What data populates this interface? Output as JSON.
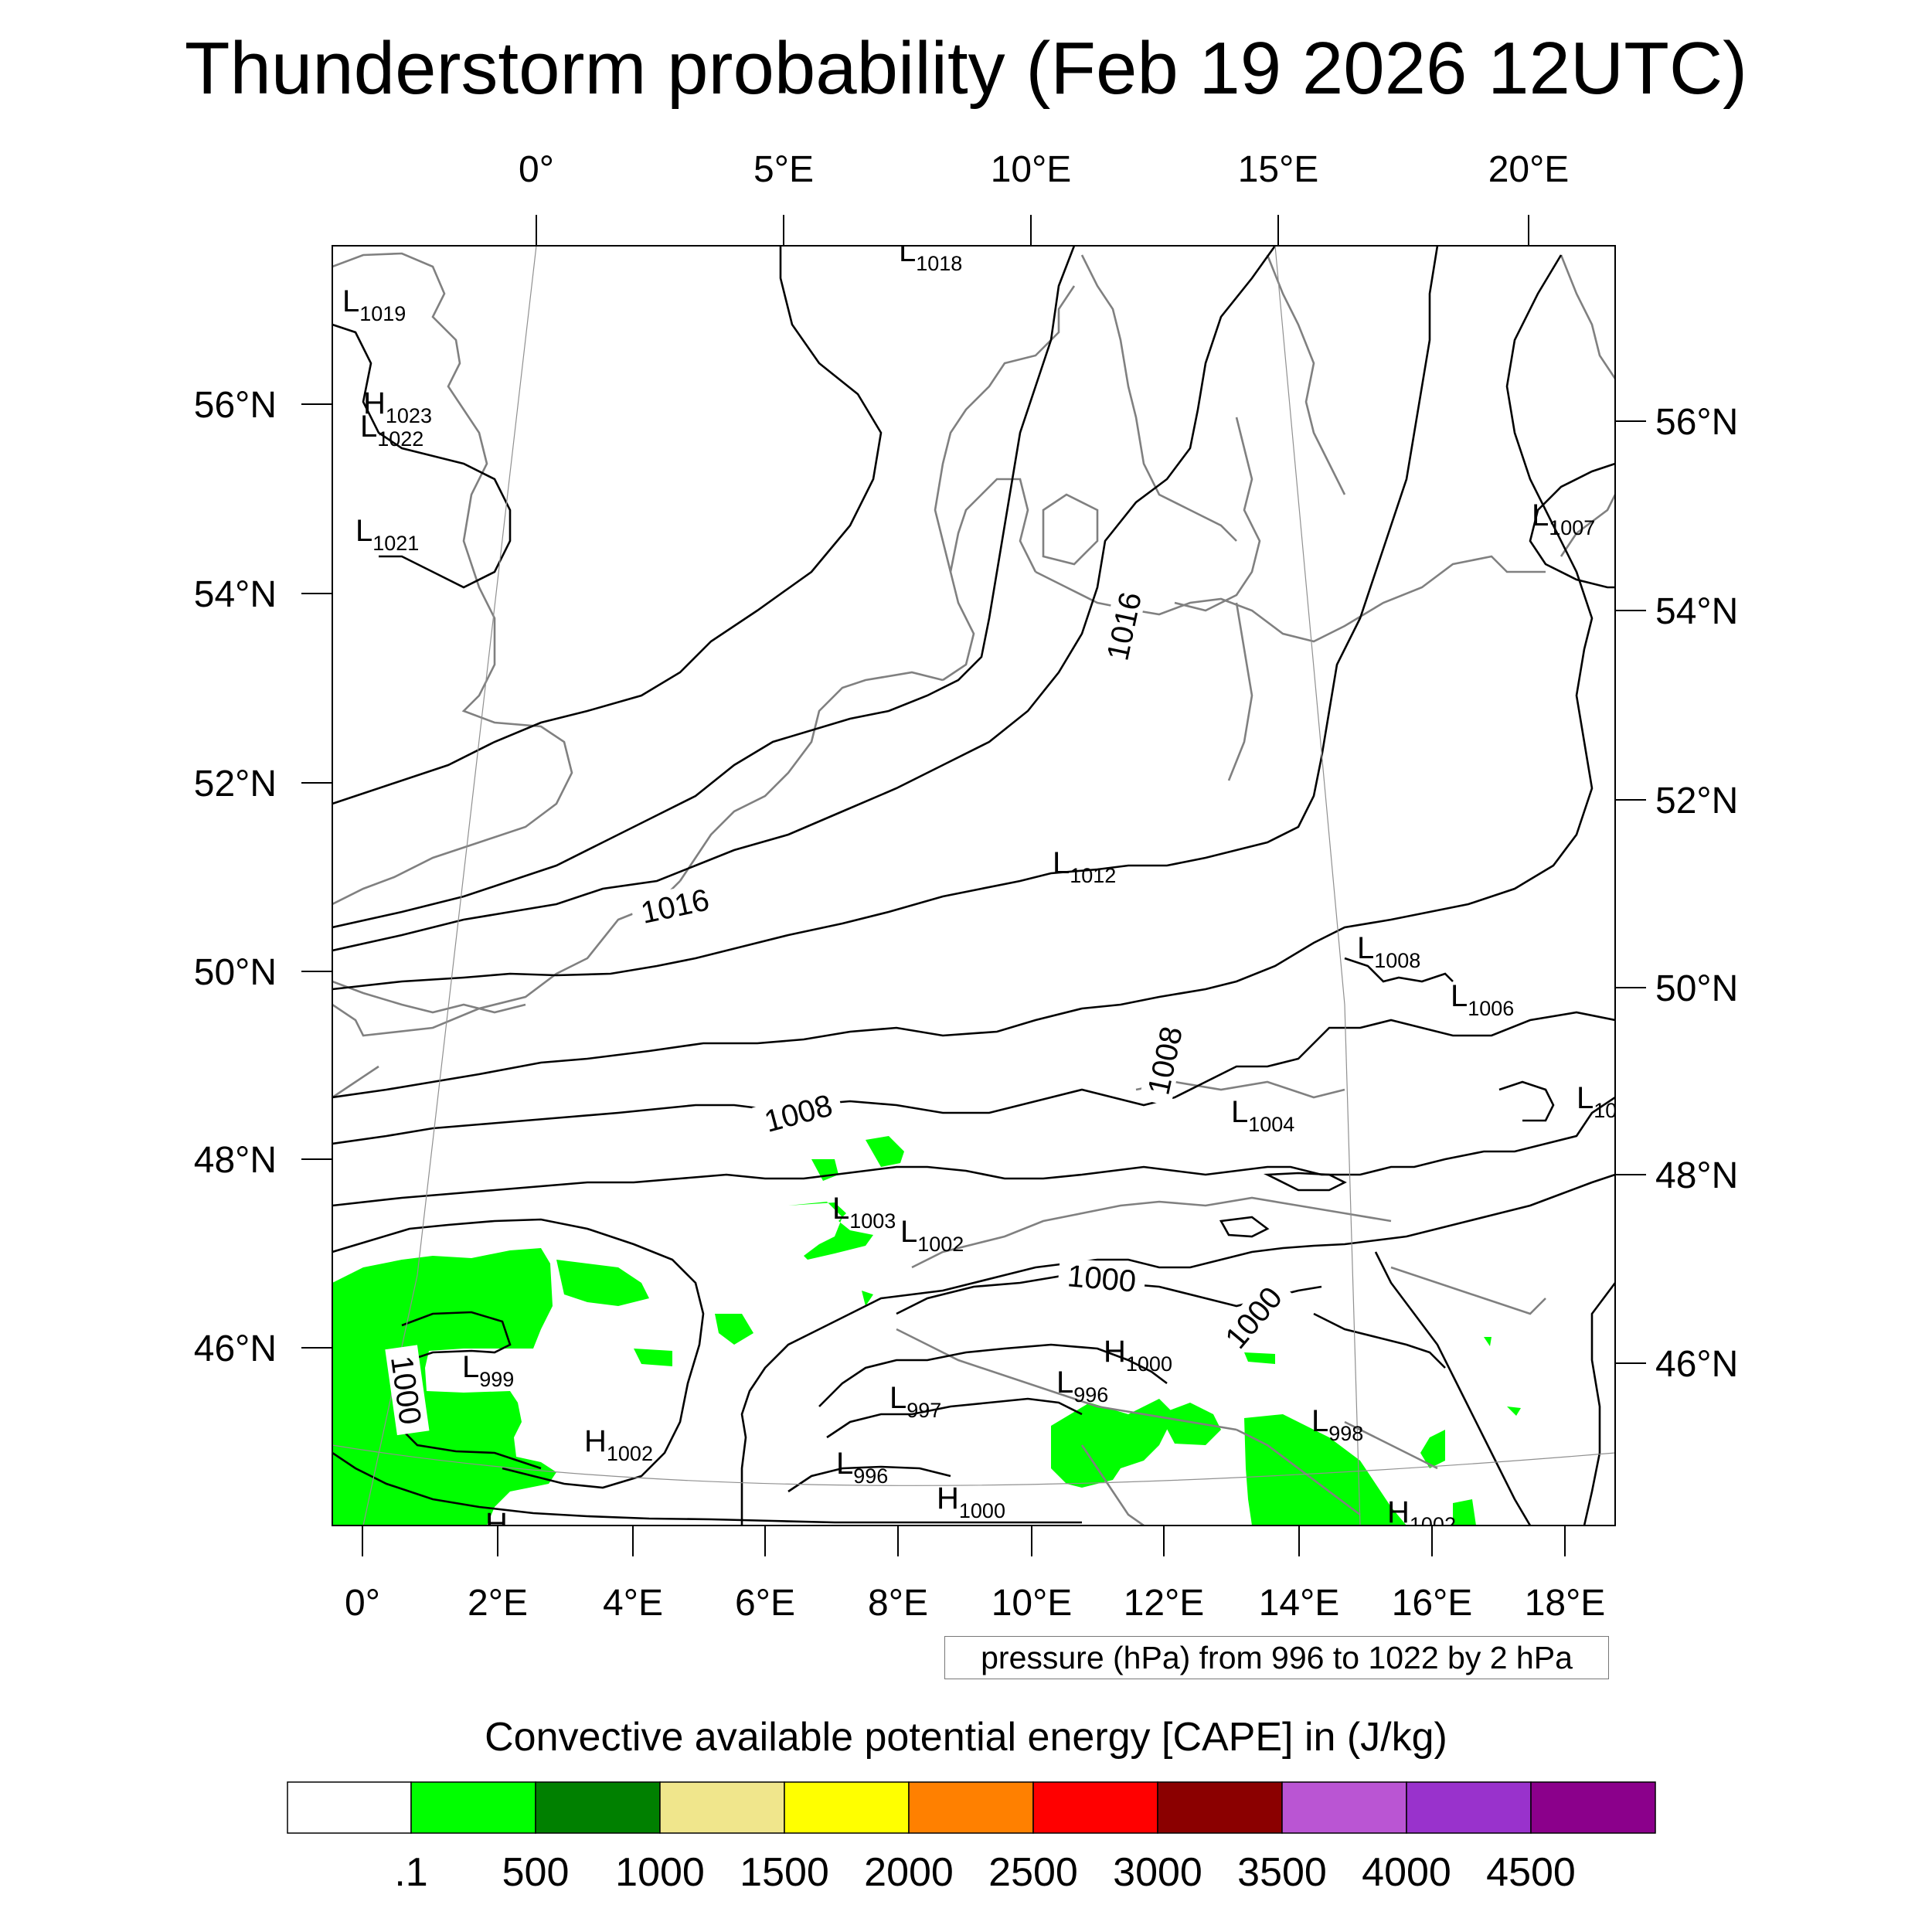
{
  "title": "Thunderstorm probability (Feb 19 2026 12UTC)",
  "top_lon_labels": [
    "0°",
    "5°E",
    "10°E",
    "15°E",
    "20°E"
  ],
  "bottom_lon_labels": [
    "0°",
    "2°E",
    "4°E",
    "6°E",
    "8°E",
    "10°E",
    "12°E",
    "14°E",
    "16°E",
    "18°E"
  ],
  "left_lat_labels": [
    "56°N",
    "54°N",
    "52°N",
    "50°N",
    "48°N",
    "46°N"
  ],
  "right_lat_labels": [
    "56°N",
    "54°N",
    "52°N",
    "50°N",
    "48°N",
    "46°N"
  ],
  "contour_labels": [
    "1016",
    "1016",
    "1008",
    "1008",
    "1000",
    "1000",
    "1000"
  ],
  "pressure_centers": [
    {
      "kind": "L",
      "value": "1018"
    },
    {
      "kind": "L",
      "value": "1019"
    },
    {
      "kind": "H",
      "value": "1023"
    },
    {
      "kind": "L",
      "value": "1022"
    },
    {
      "kind": "L",
      "value": "1021"
    },
    {
      "kind": "L",
      "value": "1007"
    },
    {
      "kind": "L",
      "value": "1012"
    },
    {
      "kind": "L",
      "value": "1008"
    },
    {
      "kind": "L",
      "value": "1006"
    },
    {
      "kind": "L",
      "value": "1004"
    },
    {
      "kind": "L",
      "value": "10"
    },
    {
      "kind": "L",
      "value": "1003"
    },
    {
      "kind": "L",
      "value": "1002"
    },
    {
      "kind": "H",
      "value": "1000"
    },
    {
      "kind": "L",
      "value": "999"
    },
    {
      "kind": "H",
      "value": "1002"
    },
    {
      "kind": "L",
      "value": "997"
    },
    {
      "kind": "L",
      "value": "996"
    },
    {
      "kind": "L",
      "value": "996"
    },
    {
      "kind": "H",
      "value": "1000"
    },
    {
      "kind": "L",
      "value": "998"
    },
    {
      "kind": "H",
      "value": "1002"
    },
    {
      "kind": "H",
      "value": ""
    }
  ],
  "pressure_note": "pressure (hPa) from 996 to 1022 by 2 hPa",
  "colorbar": {
    "title": "Convective available potential energy [CAPE] in (J/kg)",
    "labels": [
      ".1",
      "500",
      "1000",
      "1500",
      "2000",
      "2500",
      "3000",
      "3500",
      "4000",
      "4500"
    ],
    "colors": [
      "#ffffff",
      "#00ff00",
      "#008000",
      "#f0e68c",
      "#ffff00",
      "#ff8000",
      "#ff0000",
      "#8b0000",
      "#ba55d3",
      "#9932cc",
      "#8b008b"
    ]
  },
  "colors": {
    "cape_fill": "#00ff00",
    "coastline": "#808080",
    "isobar": "#000000"
  }
}
